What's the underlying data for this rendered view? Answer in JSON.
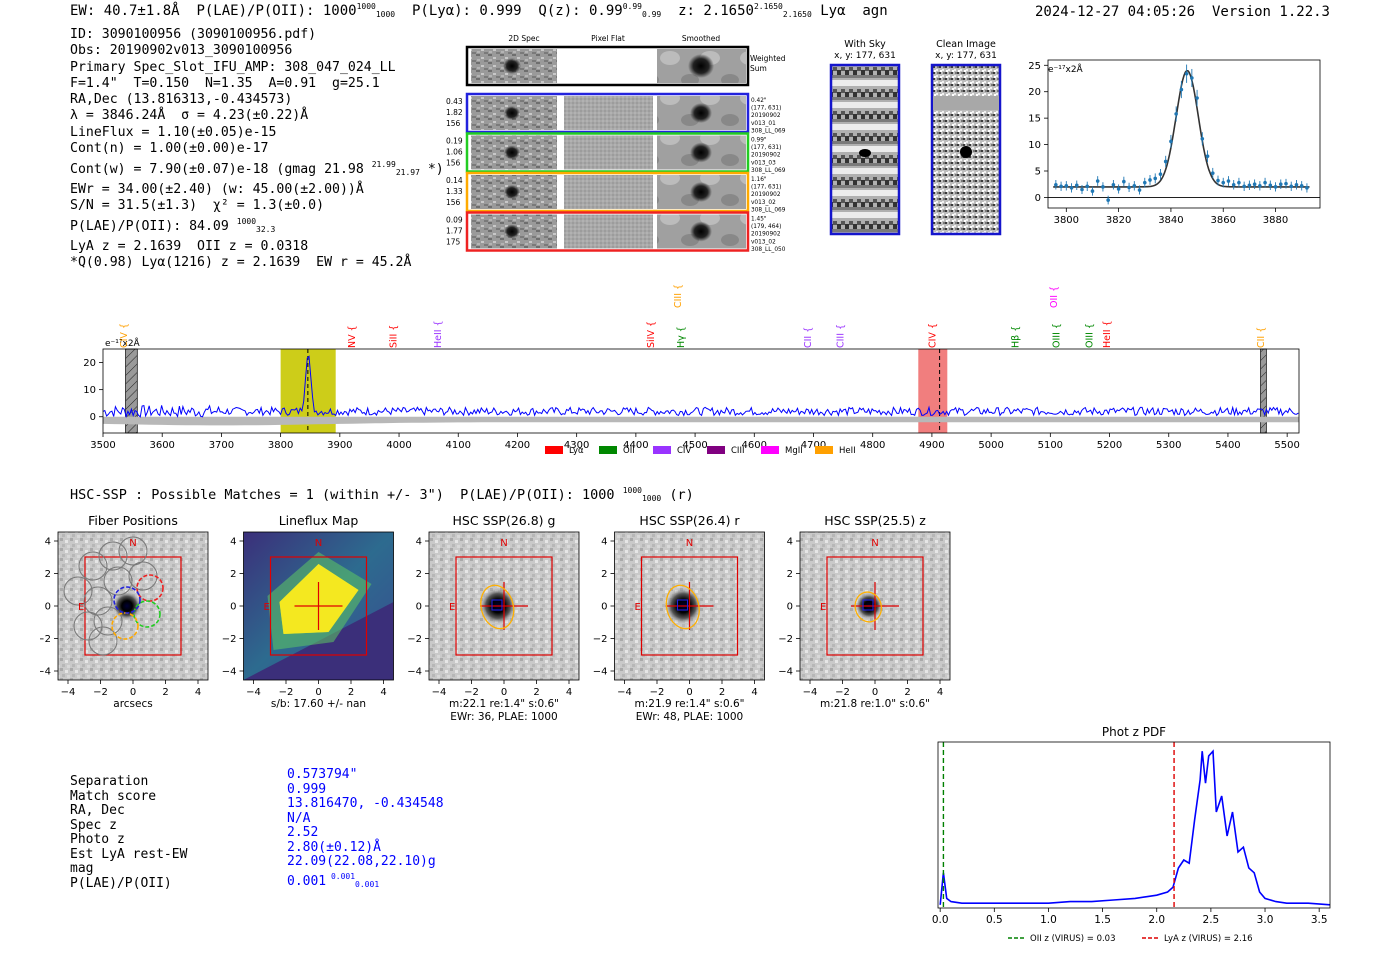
{
  "header": {
    "ew": "EW: 40.7±1.8Å",
    "plae_label": "P(LAE)/P(OII): 1000",
    "plae_sup": "1000",
    "plae_sub": "1000",
    "plya": "P(Lyα): 0.999",
    "qz_label": "Q(z): 0.99",
    "qz_sup": "0.99",
    "qz_sub": "0.99",
    "z_label": "z: 2.1650",
    "z_sup": "2.1650",
    "z_sub": "2.1650",
    "line": "Lyα",
    "cls": "agn",
    "timestamp": "2024-12-27 04:05:26",
    "version": "Version 1.22.3"
  },
  "info": {
    "lines": [
      "ID: 3090100956 (3090100956.pdf)",
      "Obs: 20190902v013_3090100956",
      "Primary Spec_Slot_IFU_AMP: 308_047_024_LL",
      "F=1.4\"  T=0.150  N=1.35  A=0.91  g=25.1",
      "RA,Dec (13.816313,-0.434573)",
      "λ = 3846.24Å  σ = 4.23(±0.22)Å",
      "LineFlux = 1.10(±0.05)e-15",
      "Cont(n) = 1.00(±0.00)e-17"
    ],
    "contw": "Cont(w) = 7.90(±0.07)e-18 (gmag 21.98",
    "contw_sup": "21.99",
    "contw_sub": "21.97",
    "contw_end": "*)",
    "ewr": "EWr = 34.00(±2.40) (w: 45.00(±2.00))Å",
    "sn": "S/N = 31.5(±1.3)  χ² = 1.3(±0.0)",
    "plae": "P(LAE)/P(OII): 84.09",
    "plae_sup": "1000",
    "plae_sub": "32.3",
    "lya_oii": "LyA z = 2.1639  OII z = 0.0318",
    "q": "*Q(0.98) Lyα(1216) z = 2.1639  EW r = 45.2Å"
  },
  "cutouts": {
    "col_titles": [
      "2D Spec",
      "Pixel Flat",
      "Smoothed"
    ],
    "weighted": [
      "Weighted",
      "Sum"
    ],
    "rows": [
      {
        "left": [
          "0.43",
          "1.82",
          "156"
        ],
        "right": [
          "0.42\"",
          "(177, 631)",
          "20190902",
          "v013_01",
          "308_LL_069"
        ],
        "color": "#2222dd"
      },
      {
        "left": [
          "0.19",
          "1.06",
          "156"
        ],
        "right": [
          "0.99\"",
          "(177, 631)",
          "20190902",
          "v013_03",
          "308_LL_069"
        ],
        "color": "#22cc22"
      },
      {
        "left": [
          "0.14",
          "1.33",
          "156"
        ],
        "right": [
          "1.16\"",
          "(177, 631)",
          "20190902",
          "v013_02",
          "308_LL_069"
        ],
        "color": "#ffaa00"
      },
      {
        "left": [
          "0.09",
          "1.77",
          "175"
        ],
        "right": [
          "1.45\"",
          "(179, 464)",
          "20190902",
          "v013_02",
          "308_LL_050"
        ],
        "color": "#ee2222"
      }
    ]
  },
  "sky": {
    "with_sky": "With Sky",
    "with_sky_xy": "x, y: 177, 631",
    "clean": "Clean Image",
    "clean_xy": "x, y: 177, 631"
  },
  "zoom_chart": {
    "type": "scatter",
    "unit": "e⁻¹⁷x2Å",
    "xlim": [
      3793,
      3897
    ],
    "ylim": [
      -2,
      26
    ],
    "xticks": [
      3800,
      3820,
      3840,
      3860,
      3880
    ],
    "yticks": [
      0,
      5,
      10,
      15,
      20,
      25
    ],
    "fit": {
      "center": 3846.24,
      "sigma": 4.23,
      "amp": 22.0,
      "cont": 2.0
    },
    "points": [
      [
        3796,
        2.4
      ],
      [
        3798,
        2.1
      ],
      [
        3800,
        2.2
      ],
      [
        3802,
        1.8
      ],
      [
        3804,
        2.3
      ],
      [
        3806,
        1.5
      ],
      [
        3808,
        2.1
      ],
      [
        3810,
        1.2
      ],
      [
        3812,
        3.1
      ],
      [
        3814,
        2.0
      ],
      [
        3816,
        -0.5
      ],
      [
        3818,
        2.4
      ],
      [
        3820,
        1.6
      ],
      [
        3822,
        3.0
      ],
      [
        3824,
        1.9
      ],
      [
        3826,
        2.2
      ],
      [
        3828,
        1.4
      ],
      [
        3830,
        2.8
      ],
      [
        3832,
        3.3
      ],
      [
        3834,
        3.6
      ],
      [
        3836,
        4.4
      ],
      [
        3838,
        6.8
      ],
      [
        3840,
        10.6
      ],
      [
        3842,
        15.8
      ],
      [
        3844,
        20.4
      ],
      [
        3846,
        23.4
      ],
      [
        3848,
        22.6
      ],
      [
        3850,
        18.8
      ],
      [
        3852,
        11.1
      ],
      [
        3854,
        7.8
      ],
      [
        3856,
        4.6
      ],
      [
        3858,
        3.2
      ],
      [
        3860,
        2.8
      ],
      [
        3862,
        3.1
      ],
      [
        3864,
        2.4
      ],
      [
        3866,
        2.8
      ],
      [
        3868,
        2.1
      ],
      [
        3870,
        2.3
      ],
      [
        3872,
        2.5
      ],
      [
        3874,
        2.2
      ],
      [
        3876,
        2.8
      ],
      [
        3878,
        2.3
      ],
      [
        3880,
        2.0
      ],
      [
        3882,
        2.5
      ],
      [
        3884,
        2.6
      ],
      [
        3886,
        2.1
      ],
      [
        3888,
        2.4
      ],
      [
        3890,
        2.2
      ],
      [
        3892,
        1.8
      ]
    ]
  },
  "spectrum_chart": {
    "type": "line",
    "unit": "e⁻¹⁷x2Å",
    "xlim": [
      3500,
      5520
    ],
    "ylim": [
      -6,
      25
    ],
    "xticks": [
      3500,
      3600,
      3700,
      3800,
      3900,
      4000,
      4100,
      4200,
      4300,
      4400,
      4500,
      4600,
      4700,
      4800,
      4900,
      5000,
      5100,
      5200,
      5300,
      5400,
      5500
    ],
    "yticks": [
      0,
      10,
      20
    ],
    "peak": {
      "wave": 3846.24,
      "sigma": 4.23,
      "amp": 22.0
    },
    "continuum": 2.0,
    "highlights": [
      {
        "from": 3800,
        "to": 3893,
        "color": "#c8c800",
        "dashed_at": 3846
      },
      {
        "from": 4877,
        "to": 4926,
        "color": "#f07070",
        "dashed_at": 4913
      }
    ],
    "hatched": [
      [
        3538,
        3558
      ],
      [
        5455,
        5465
      ]
    ],
    "line_marks": [
      {
        "label": "CIV",
        "wave": 3535,
        "color": "#ffa000",
        "tier": 1
      },
      {
        "label": "NV",
        "wave": 3920,
        "color": "#ff0000",
        "tier": 1
      },
      {
        "label": "SiII",
        "wave": 3990,
        "color": "#ff0000",
        "tier": 1
      },
      {
        "label": "HeII",
        "wave": 4065,
        "color": "#9933ff",
        "tier": 1
      },
      {
        "label": "SiIV",
        "wave": 4425,
        "color": "#ff0000",
        "tier": 1
      },
      {
        "label": "CIII",
        "wave": 4470,
        "color": "#ffa000",
        "tier": 0
      },
      {
        "label": "Hγ",
        "wave": 4475,
        "color": "#008800",
        "tier": 1
      },
      {
        "label": "CII",
        "wave": 4690,
        "color": "#9933ff",
        "tier": 1
      },
      {
        "label": "CIII",
        "wave": 4745,
        "color": "#9933ff",
        "tier": 1
      },
      {
        "label": "CIV",
        "wave": 4900,
        "color": "#ff0000",
        "tier": 1
      },
      {
        "label": "Hβ",
        "wave": 5040,
        "color": "#008800",
        "tier": 1
      },
      {
        "label": "OII",
        "wave": 5105,
        "color": "#ff00ff",
        "tier": 0
      },
      {
        "label": "OIII",
        "wave": 5110,
        "color": "#008800",
        "tier": 1
      },
      {
        "label": "OIII",
        "wave": 5165,
        "color": "#008800",
        "tier": 1
      },
      {
        "label": "HeII",
        "wave": 5195,
        "color": "#ff0000",
        "tier": 1
      },
      {
        "label": "CII",
        "wave": 5455,
        "color": "#ffa000",
        "tier": 1
      }
    ],
    "legend": [
      {
        "label": "Lyα",
        "color": "#ff0000"
      },
      {
        "label": "OII",
        "color": "#008800"
      },
      {
        "label": "CIV",
        "color": "#9933ff"
      },
      {
        "label": "CIII",
        "color": "#800080"
      },
      {
        "label": "MgII",
        "color": "#ff00ff"
      },
      {
        "label": "HeII",
        "color": "#ffa000"
      }
    ]
  },
  "hsc": {
    "line_prefix": "HSC-SSP : Possible Matches = 1 (within +/- 3\")  P(LAE)/P(OII): 1000",
    "line_sup": "1000",
    "line_sub": "1000",
    "line_end": "(r)",
    "panels": [
      {
        "title": "Fiber Positions",
        "caption1": "arcsecs",
        "caption2": "",
        "kind": "fiber"
      },
      {
        "title": "Lineflux Map",
        "caption1": "s/b: 17.60 +/- nan",
        "caption2": "",
        "kind": "lineflux"
      },
      {
        "title": "HSC SSP(26.8) g",
        "caption1": "m:22.1  re:1.4\"  s:0.6\"",
        "caption2": "EWr: 36, PLAE: 1000",
        "kind": "hsc"
      },
      {
        "title": "HSC SSP(26.4) r",
        "caption1": "m:21.9  re:1.4\"  s:0.6\"",
        "caption2": "EWr: 48, PLAE: 1000",
        "kind": "hsc"
      },
      {
        "title": "HSC SSP(25.5) z",
        "caption1": "m:21.8  re:1.0\"  s:0.6\"",
        "caption2": "",
        "kind": "hsc"
      }
    ],
    "ticks": [
      "−4",
      "−2",
      "0",
      "2",
      "4"
    ],
    "north": "N",
    "east": "E"
  },
  "match": {
    "labels": [
      "Separation",
      "Match score",
      "RA, Dec",
      "Spec z",
      "Photo z",
      "Est LyA rest-EW",
      "mag",
      "P(LAE)/P(OII)"
    ],
    "values": [
      "0.573794\"",
      "0.999",
      "13.816470, -0.434548",
      "N/A",
      "2.52",
      "2.80(±0.12)Å",
      "22.09(22.08,22.10)g",
      "0.001"
    ],
    "plae_sup": "0.001",
    "plae_sub": "0.001"
  },
  "photz_chart": {
    "type": "line",
    "title": "Phot z PDF",
    "xlim": [
      -0.02,
      3.6
    ],
    "xticks": [
      0.0,
      0.5,
      1.0,
      1.5,
      2.0,
      2.5,
      3.0,
      3.5
    ],
    "xtick_labels": [
      "0.0",
      "0.5",
      "1.0",
      "1.5",
      "2.0",
      "2.5",
      "3.0",
      "3.5"
    ],
    "oii_z": 0.03,
    "lya_z": 2.16,
    "legend": [
      "OII z (VIRUS) = 0.03",
      "LyA z (VIRUS) = 2.16"
    ],
    "series": [
      [
        0.0,
        0.02
      ],
      [
        0.03,
        0.22
      ],
      [
        0.06,
        0.06
      ],
      [
        0.1,
        0.04
      ],
      [
        0.2,
        0.03
      ],
      [
        0.4,
        0.03
      ],
      [
        0.6,
        0.03
      ],
      [
        0.8,
        0.03
      ],
      [
        1.0,
        0.03
      ],
      [
        1.2,
        0.04
      ],
      [
        1.4,
        0.04
      ],
      [
        1.6,
        0.05
      ],
      [
        1.8,
        0.06
      ],
      [
        1.9,
        0.07
      ],
      [
        2.0,
        0.08
      ],
      [
        2.1,
        0.1
      ],
      [
        2.15,
        0.13
      ],
      [
        2.2,
        0.25
      ],
      [
        2.25,
        0.3
      ],
      [
        2.3,
        0.28
      ],
      [
        2.35,
        0.55
      ],
      [
        2.4,
        0.8
      ],
      [
        2.42,
        0.98
      ],
      [
        2.45,
        0.78
      ],
      [
        2.48,
        0.95
      ],
      [
        2.52,
        0.98
      ],
      [
        2.55,
        0.6
      ],
      [
        2.6,
        0.7
      ],
      [
        2.65,
        0.45
      ],
      [
        2.7,
        0.6
      ],
      [
        2.75,
        0.35
      ],
      [
        2.8,
        0.38
      ],
      [
        2.85,
        0.25
      ],
      [
        2.9,
        0.22
      ],
      [
        2.95,
        0.1
      ],
      [
        3.0,
        0.06
      ],
      [
        3.1,
        0.04
      ],
      [
        3.2,
        0.03
      ],
      [
        3.4,
        0.03
      ],
      [
        3.6,
        0.02
      ]
    ]
  }
}
